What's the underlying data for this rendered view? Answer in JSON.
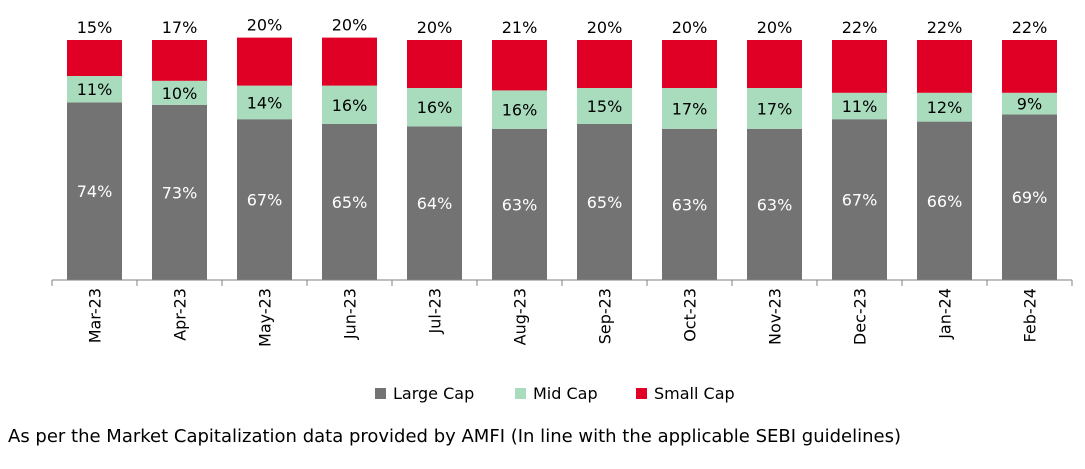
{
  "chart_data": {
    "type": "bar",
    "stacked": true,
    "categories": [
      "Mar-23",
      "Apr-23",
      "May-23",
      "Jun-23",
      "Jul-23",
      "Aug-23",
      "Sep-23",
      "Oct-23",
      "Nov-23",
      "Dec-23",
      "Jan-24",
      "Feb-24"
    ],
    "series": [
      {
        "name": "Large Cap",
        "color": "#737373",
        "label_color": "#ffffff",
        "values": [
          74,
          73,
          67,
          65,
          64,
          63,
          65,
          63,
          63,
          67,
          66,
          69
        ]
      },
      {
        "name": "Mid Cap",
        "color": "#a8dcbd",
        "label_color": "#000000",
        "values": [
          11,
          10,
          14,
          16,
          16,
          16,
          15,
          17,
          17,
          11,
          12,
          9
        ]
      },
      {
        "name": "Small Cap",
        "color": "#e00025",
        "label_color": "#000000",
        "values": [
          15,
          17,
          20,
          20,
          20,
          21,
          20,
          20,
          20,
          22,
          22,
          22
        ]
      }
    ],
    "value_suffix": "%",
    "ylim": [
      0,
      100
    ],
    "grid": false,
    "legend_position": "bottom"
  },
  "footnote": "As per the Market Capitalization data provided by AMFI (In line with the applicable SEBI guidelines)"
}
